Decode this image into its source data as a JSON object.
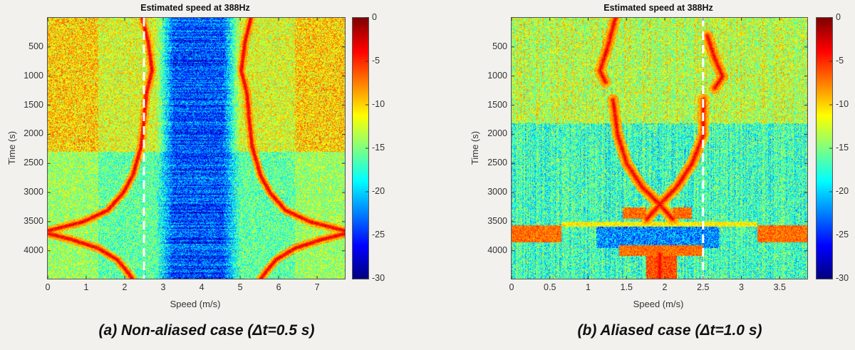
{
  "chart_data": [
    {
      "type": "heatmap",
      "title": "Estimated speed at 388Hz",
      "xlabel": "Speed (m/s)",
      "ylabel": "Time (s)",
      "xlim": [
        0,
        7.72
      ],
      "ylim": [
        0,
        4480
      ],
      "xticks": [
        "0",
        "1",
        "2",
        "3",
        "4",
        "5",
        "6",
        "7"
      ],
      "yticks": [
        "500",
        "1000",
        "1500",
        "2000",
        "2500",
        "3000",
        "3500",
        "4000"
      ],
      "colorbar": {
        "colormap": "jet",
        "range": [
          -30,
          0
        ],
        "ticks": [
          "0",
          "-5",
          "-10",
          "-15",
          "-20",
          "-25",
          "-30"
        ]
      },
      "reference_line": {
        "speed": 2.5,
        "style": "dashed",
        "color": "#ffffff"
      },
      "background_level_db": -10,
      "low_band": {
        "speed_range": [
          2.8,
          5.0
        ],
        "level_db": -24
      },
      "ridges": [
        [
          [
            2.45,
            0
          ],
          [
            2.6,
            400
          ],
          [
            2.7,
            900
          ],
          [
            2.55,
            1300
          ],
          [
            2.5,
            1700
          ],
          [
            2.42,
            2200
          ],
          [
            2.2,
            2700
          ],
          [
            1.95,
            3000
          ],
          [
            1.55,
            3300
          ],
          [
            0.9,
            3500
          ],
          [
            0,
            3650
          ]
        ],
        [
          [
            0,
            3700
          ],
          [
            0.6,
            3800
          ],
          [
            1.3,
            3950
          ],
          [
            1.8,
            4150
          ],
          [
            2.05,
            4350
          ],
          [
            2.2,
            4480
          ]
        ],
        [
          [
            5.27,
            0
          ],
          [
            5.12,
            400
          ],
          [
            5.02,
            900
          ],
          [
            5.17,
            1300
          ],
          [
            5.22,
            1700
          ],
          [
            5.3,
            2200
          ],
          [
            5.52,
            2700
          ],
          [
            5.77,
            3000
          ],
          [
            6.17,
            3300
          ],
          [
            6.82,
            3500
          ],
          [
            7.72,
            3650
          ]
        ],
        [
          [
            7.72,
            3700
          ],
          [
            7.12,
            3800
          ],
          [
            6.42,
            3950
          ],
          [
            5.92,
            4150
          ],
          [
            5.67,
            4350
          ],
          [
            5.52,
            4480
          ]
        ]
      ],
      "bands": [],
      "caption": "(a) Non-aliased case (Δt=0.5 s)"
    },
    {
      "type": "heatmap",
      "title": "Estimated speed at 388Hz",
      "xlabel": "Speed (m/s)",
      "ylabel": "Time (s)",
      "xlim": [
        0,
        3.86
      ],
      "ylim": [
        0,
        4480
      ],
      "xticks": [
        "0",
        "0.5",
        "1",
        "1.5",
        "2",
        "2.5",
        "3",
        "3.5"
      ],
      "yticks": [
        "500",
        "1000",
        "1500",
        "2000",
        "2500",
        "3000",
        "3500",
        "4000"
      ],
      "colorbar": {
        "colormap": "jet",
        "range": [
          -30,
          0
        ],
        "ticks": [
          "0",
          "-5",
          "-10",
          "-15",
          "-20",
          "-25",
          "-30"
        ]
      },
      "reference_line": {
        "speed": 2.5,
        "style": "dashed",
        "color": "#ffffff"
      },
      "background_level_db": -13,
      "low_band": {
        "speed_range": [
          0.5,
          3.3
        ],
        "level_db": -20
      },
      "ridges": [
        [
          [
            1.35,
            0
          ],
          [
            1.25,
            500
          ],
          [
            1.15,
            900
          ],
          [
            1.22,
            1100
          ]
        ],
        [
          [
            1.32,
            1400
          ],
          [
            1.38,
            2000
          ],
          [
            1.5,
            2500
          ],
          [
            1.7,
            2900
          ],
          [
            1.93,
            3200
          ],
          [
            2.1,
            3450
          ]
        ],
        [
          [
            2.55,
            300
          ],
          [
            2.65,
            700
          ],
          [
            2.75,
            1000
          ],
          [
            2.65,
            1200
          ]
        ],
        [
          [
            2.5,
            1400
          ],
          [
            2.5,
            2000
          ],
          [
            2.35,
            2500
          ],
          [
            2.15,
            2900
          ],
          [
            1.93,
            3200
          ],
          [
            1.76,
            3450
          ]
        ],
        [
          [
            1.93,
            4050
          ],
          [
            1.93,
            4480
          ]
        ]
      ],
      "bands": [
        {
          "speed_range": [
            0,
            0.65
          ],
          "time_range": [
            3550,
            3850
          ],
          "level_db": -7
        },
        {
          "speed_range": [
            3.2,
            3.86
          ],
          "time_range": [
            3550,
            3850
          ],
          "level_db": -7
        },
        {
          "speed_range": [
            0.65,
            3.2
          ],
          "time_range": [
            3500,
            3580
          ],
          "level_db": -11
        },
        {
          "speed_range": [
            1.4,
            2.5
          ],
          "time_range": [
            3900,
            4080
          ],
          "level_db": -7
        },
        {
          "speed_range": [
            1.75,
            2.15
          ],
          "time_range": [
            4080,
            4480
          ],
          "level_db": -6
        },
        {
          "speed_range": [
            1.45,
            1.75
          ],
          "time_range": [
            3250,
            3450
          ],
          "level_db": -7
        },
        {
          "speed_range": [
            2.1,
            2.35
          ],
          "time_range": [
            3250,
            3450
          ],
          "level_db": -7
        }
      ],
      "caption": "(b) Aliased case (Δt=1.0 s)"
    }
  ]
}
